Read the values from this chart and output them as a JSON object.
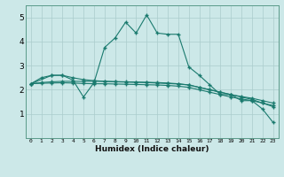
{
  "xlabel": "Humidex (Indice chaleur)",
  "bg_color": "#cce8e8",
  "grid_color": "#aacccc",
  "line_color": "#1a7a6e",
  "xlim": [
    -0.5,
    23.5
  ],
  "ylim": [
    0,
    5.5
  ],
  "yticks": [
    1,
    2,
    3,
    4,
    5
  ],
  "xtick_labels": [
    "0",
    "1",
    "2",
    "3",
    "4",
    "5",
    "6",
    "7",
    "8",
    "9",
    "10",
    "11",
    "12",
    "13",
    "14",
    "15",
    "16",
    "17",
    "18",
    "19",
    "20",
    "21",
    "22",
    "23"
  ],
  "lines": [
    {
      "x": [
        0,
        1,
        2,
        3,
        4,
        5,
        6,
        7,
        8,
        9,
        10,
        11,
        12,
        13,
        14,
        15,
        16,
        17,
        18,
        19,
        20,
        21,
        22,
        23
      ],
      "y": [
        2.25,
        2.5,
        2.6,
        2.6,
        2.4,
        1.7,
        2.3,
        3.75,
        4.15,
        4.8,
        4.35,
        5.1,
        4.35,
        4.3,
        4.3,
        2.95,
        2.6,
        2.2,
        1.8,
        1.8,
        1.55,
        1.55,
        1.2,
        0.65
      ]
    },
    {
      "x": [
        0,
        2,
        3,
        4,
        5,
        6,
        7,
        8,
        9,
        10,
        11,
        12,
        13,
        14,
        15,
        16,
        17,
        18,
        19,
        20,
        21,
        22,
        23
      ],
      "y": [
        2.25,
        2.6,
        2.6,
        2.5,
        2.42,
        2.38,
        2.35,
        2.33,
        2.32,
        2.31,
        2.3,
        2.28,
        2.26,
        2.24,
        2.2,
        2.1,
        2.0,
        1.9,
        1.8,
        1.7,
        1.6,
        1.45,
        1.3
      ]
    },
    {
      "x": [
        0,
        1,
        2,
        3,
        4,
        5,
        6,
        7,
        8,
        9,
        10,
        11,
        12,
        13,
        14,
        15,
        16,
        17,
        18,
        19,
        20,
        21,
        22,
        23
      ],
      "y": [
        2.25,
        2.3,
        2.33,
        2.35,
        2.35,
        2.35,
        2.35,
        2.35,
        2.34,
        2.33,
        2.32,
        2.31,
        2.3,
        2.28,
        2.25,
        2.2,
        2.1,
        2.0,
        1.9,
        1.8,
        1.72,
        1.65,
        1.55,
        1.45
      ]
    },
    {
      "x": [
        0,
        1,
        2,
        3,
        4,
        5,
        6,
        7,
        8,
        9,
        10,
        11,
        12,
        13,
        14,
        15,
        16,
        17,
        18,
        19,
        20,
        21,
        22,
        23
      ],
      "y": [
        2.25,
        2.27,
        2.28,
        2.29,
        2.28,
        2.26,
        2.25,
        2.25,
        2.24,
        2.23,
        2.22,
        2.21,
        2.2,
        2.18,
        2.15,
        2.1,
        2.0,
        1.9,
        1.8,
        1.7,
        1.62,
        1.55,
        1.45,
        1.35
      ]
    }
  ]
}
